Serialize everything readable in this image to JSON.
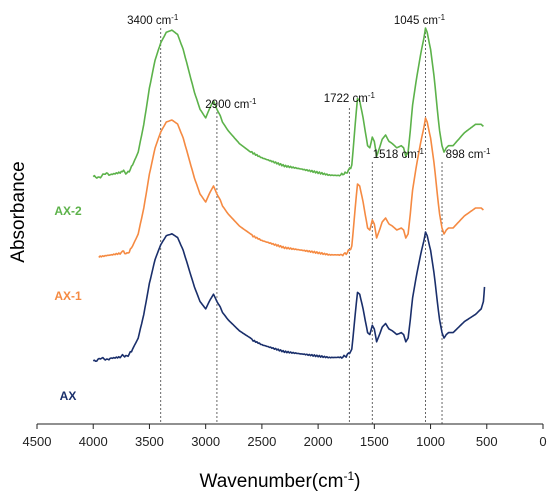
{
  "chart_data": {
    "type": "line",
    "xlabel": "Wavenumber(cm",
    "xlabel_sup": "-1",
    "xlabel_close": ")",
    "ylabel": "Absorbance",
    "xlim": [
      0,
      4500
    ],
    "x_reversed": true,
    "x_ticks": [
      "4500",
      "4000",
      "3500",
      "3000",
      "2500",
      "2000",
      "1500",
      "1000",
      "500",
      "0"
    ],
    "y_ticks_shown": false,
    "grid": false,
    "series": [
      {
        "name": "AX-2",
        "color": "#5cb24a",
        "points": [
          [
            4000,
            0.3
          ],
          [
            3850,
            0.32
          ],
          [
            3750,
            0.33
          ],
          [
            3700,
            0.32
          ],
          [
            3650,
            0.36
          ],
          [
            3600,
            0.42
          ],
          [
            3550,
            0.55
          ],
          [
            3500,
            0.72
          ],
          [
            3450,
            0.85
          ],
          [
            3400,
            0.93
          ],
          [
            3350,
            0.98
          ],
          [
            3300,
            0.99
          ],
          [
            3250,
            0.97
          ],
          [
            3200,
            0.9
          ],
          [
            3150,
            0.8
          ],
          [
            3100,
            0.7
          ],
          [
            3050,
            0.62
          ],
          [
            3000,
            0.58
          ],
          [
            2960,
            0.63
          ],
          [
            2930,
            0.66
          ],
          [
            2900,
            0.62
          ],
          [
            2870,
            0.59
          ],
          [
            2850,
            0.56
          ],
          [
            2800,
            0.52
          ],
          [
            2700,
            0.46
          ],
          [
            2600,
            0.42
          ],
          [
            2500,
            0.39
          ],
          [
            2400,
            0.37
          ],
          [
            2300,
            0.35
          ],
          [
            2200,
            0.34
          ],
          [
            2100,
            0.33
          ],
          [
            2000,
            0.32
          ],
          [
            1900,
            0.31
          ],
          [
            1800,
            0.31
          ],
          [
            1750,
            0.32
          ],
          [
            1700,
            0.36
          ],
          [
            1670,
            0.55
          ],
          [
            1650,
            0.67
          ],
          [
            1630,
            0.66
          ],
          [
            1600,
            0.58
          ],
          [
            1560,
            0.45
          ],
          [
            1540,
            0.44
          ],
          [
            1518,
            0.49
          ],
          [
            1500,
            0.47
          ],
          [
            1480,
            0.4
          ],
          [
            1460,
            0.43
          ],
          [
            1430,
            0.48
          ],
          [
            1400,
            0.5
          ],
          [
            1370,
            0.47
          ],
          [
            1340,
            0.46
          ],
          [
            1300,
            0.44
          ],
          [
            1260,
            0.45
          ],
          [
            1240,
            0.44
          ],
          [
            1220,
            0.4
          ],
          [
            1200,
            0.42
          ],
          [
            1180,
            0.52
          ],
          [
            1160,
            0.64
          ],
          [
            1120,
            0.78
          ],
          [
            1080,
            0.9
          ],
          [
            1060,
            0.95
          ],
          [
            1045,
            1.0
          ],
          [
            1030,
            0.98
          ],
          [
            1000,
            0.9
          ],
          [
            970,
            0.78
          ],
          [
            940,
            0.62
          ],
          [
            920,
            0.52
          ],
          [
            898,
            0.45
          ],
          [
            880,
            0.42
          ],
          [
            860,
            0.44
          ],
          [
            840,
            0.45
          ],
          [
            800,
            0.45
          ],
          [
            750,
            0.48
          ],
          [
            700,
            0.51
          ],
          [
            650,
            0.53
          ],
          [
            600,
            0.55
          ],
          [
            550,
            0.55
          ],
          [
            530,
            0.54
          ]
        ]
      },
      {
        "name": "AX-1",
        "color": "#f58a42",
        "points": [
          [
            3950,
            0.31
          ],
          [
            3850,
            0.32
          ],
          [
            3750,
            0.33
          ],
          [
            3700,
            0.32
          ],
          [
            3650,
            0.36
          ],
          [
            3600,
            0.42
          ],
          [
            3550,
            0.55
          ],
          [
            3500,
            0.72
          ],
          [
            3450,
            0.85
          ],
          [
            3400,
            0.93
          ],
          [
            3350,
            0.98
          ],
          [
            3300,
            0.99
          ],
          [
            3250,
            0.97
          ],
          [
            3200,
            0.9
          ],
          [
            3150,
            0.8
          ],
          [
            3100,
            0.7
          ],
          [
            3050,
            0.62
          ],
          [
            3000,
            0.58
          ],
          [
            2960,
            0.63
          ],
          [
            2930,
            0.66
          ],
          [
            2900,
            0.62
          ],
          [
            2870,
            0.59
          ],
          [
            2850,
            0.56
          ],
          [
            2800,
            0.52
          ],
          [
            2700,
            0.46
          ],
          [
            2600,
            0.42
          ],
          [
            2500,
            0.39
          ],
          [
            2400,
            0.37
          ],
          [
            2300,
            0.35
          ],
          [
            2200,
            0.34
          ],
          [
            2100,
            0.33
          ],
          [
            2000,
            0.32
          ],
          [
            1900,
            0.31
          ],
          [
            1800,
            0.31
          ],
          [
            1750,
            0.32
          ],
          [
            1700,
            0.36
          ],
          [
            1670,
            0.55
          ],
          [
            1650,
            0.67
          ],
          [
            1630,
            0.66
          ],
          [
            1600,
            0.58
          ],
          [
            1560,
            0.45
          ],
          [
            1540,
            0.44
          ],
          [
            1518,
            0.49
          ],
          [
            1500,
            0.47
          ],
          [
            1480,
            0.4
          ],
          [
            1460,
            0.43
          ],
          [
            1430,
            0.48
          ],
          [
            1400,
            0.5
          ],
          [
            1370,
            0.47
          ],
          [
            1340,
            0.46
          ],
          [
            1300,
            0.44
          ],
          [
            1260,
            0.45
          ],
          [
            1240,
            0.44
          ],
          [
            1220,
            0.4
          ],
          [
            1200,
            0.42
          ],
          [
            1180,
            0.52
          ],
          [
            1160,
            0.64
          ],
          [
            1120,
            0.78
          ],
          [
            1080,
            0.9
          ],
          [
            1060,
            0.95
          ],
          [
            1045,
            1.0
          ],
          [
            1030,
            0.98
          ],
          [
            1000,
            0.9
          ],
          [
            970,
            0.78
          ],
          [
            940,
            0.62
          ],
          [
            920,
            0.52
          ],
          [
            898,
            0.45
          ],
          [
            880,
            0.42
          ],
          [
            860,
            0.44
          ],
          [
            840,
            0.45
          ],
          [
            800,
            0.45
          ],
          [
            750,
            0.48
          ],
          [
            700,
            0.51
          ],
          [
            650,
            0.53
          ],
          [
            600,
            0.55
          ],
          [
            550,
            0.55
          ],
          [
            530,
            0.54
          ]
        ]
      },
      {
        "name": "AX",
        "color": "#1a2f6b",
        "points": [
          [
            4000,
            0.3
          ],
          [
            3850,
            0.31
          ],
          [
            3750,
            0.32
          ],
          [
            3700,
            0.32
          ],
          [
            3650,
            0.36
          ],
          [
            3600,
            0.42
          ],
          [
            3550,
            0.55
          ],
          [
            3500,
            0.72
          ],
          [
            3450,
            0.85
          ],
          [
            3400,
            0.93
          ],
          [
            3350,
            0.98
          ],
          [
            3300,
            0.99
          ],
          [
            3250,
            0.97
          ],
          [
            3200,
            0.9
          ],
          [
            3150,
            0.8
          ],
          [
            3100,
            0.7
          ],
          [
            3050,
            0.62
          ],
          [
            3000,
            0.58
          ],
          [
            2960,
            0.63
          ],
          [
            2930,
            0.66
          ],
          [
            2900,
            0.62
          ],
          [
            2870,
            0.59
          ],
          [
            2850,
            0.56
          ],
          [
            2800,
            0.52
          ],
          [
            2700,
            0.46
          ],
          [
            2600,
            0.42
          ],
          [
            2500,
            0.39
          ],
          [
            2400,
            0.37
          ],
          [
            2300,
            0.35
          ],
          [
            2200,
            0.34
          ],
          [
            2100,
            0.33
          ],
          [
            2000,
            0.32
          ],
          [
            1900,
            0.31
          ],
          [
            1800,
            0.31
          ],
          [
            1750,
            0.32
          ],
          [
            1700,
            0.36
          ],
          [
            1670,
            0.55
          ],
          [
            1650,
            0.67
          ],
          [
            1630,
            0.66
          ],
          [
            1600,
            0.58
          ],
          [
            1560,
            0.45
          ],
          [
            1540,
            0.44
          ],
          [
            1518,
            0.49
          ],
          [
            1500,
            0.47
          ],
          [
            1480,
            0.4
          ],
          [
            1460,
            0.43
          ],
          [
            1430,
            0.48
          ],
          [
            1400,
            0.5
          ],
          [
            1370,
            0.47
          ],
          [
            1340,
            0.46
          ],
          [
            1300,
            0.44
          ],
          [
            1260,
            0.45
          ],
          [
            1240,
            0.44
          ],
          [
            1220,
            0.4
          ],
          [
            1200,
            0.42
          ],
          [
            1180,
            0.52
          ],
          [
            1160,
            0.64
          ],
          [
            1120,
            0.78
          ],
          [
            1080,
            0.9
          ],
          [
            1060,
            0.95
          ],
          [
            1045,
            1.0
          ],
          [
            1030,
            0.98
          ],
          [
            1000,
            0.9
          ],
          [
            970,
            0.78
          ],
          [
            940,
            0.62
          ],
          [
            920,
            0.52
          ],
          [
            898,
            0.45
          ],
          [
            880,
            0.42
          ],
          [
            860,
            0.44
          ],
          [
            840,
            0.45
          ],
          [
            800,
            0.45
          ],
          [
            750,
            0.48
          ],
          [
            700,
            0.51
          ],
          [
            650,
            0.53
          ],
          [
            600,
            0.55
          ],
          [
            550,
            0.58
          ],
          [
            530,
            0.62
          ],
          [
            520,
            0.7
          ]
        ]
      }
    ],
    "peaks": [
      {
        "wavenumber": 3400,
        "value": "3400",
        "unit": "cm",
        "sup": "-1"
      },
      {
        "wavenumber": 2900,
        "value": "2900",
        "unit": "cm",
        "sup": "-1"
      },
      {
        "wavenumber": 1722,
        "value": "1722",
        "unit": "cm",
        "sup": "-1"
      },
      {
        "wavenumber": 1518,
        "value": "1518",
        "unit": "cm",
        "sup": "-1"
      },
      {
        "wavenumber": 1045,
        "value": "1045",
        "unit": "cm",
        "sup": "-1"
      },
      {
        "wavenumber": 898,
        "value": "898",
        "unit": "cm",
        "sup": "-1"
      }
    ]
  }
}
